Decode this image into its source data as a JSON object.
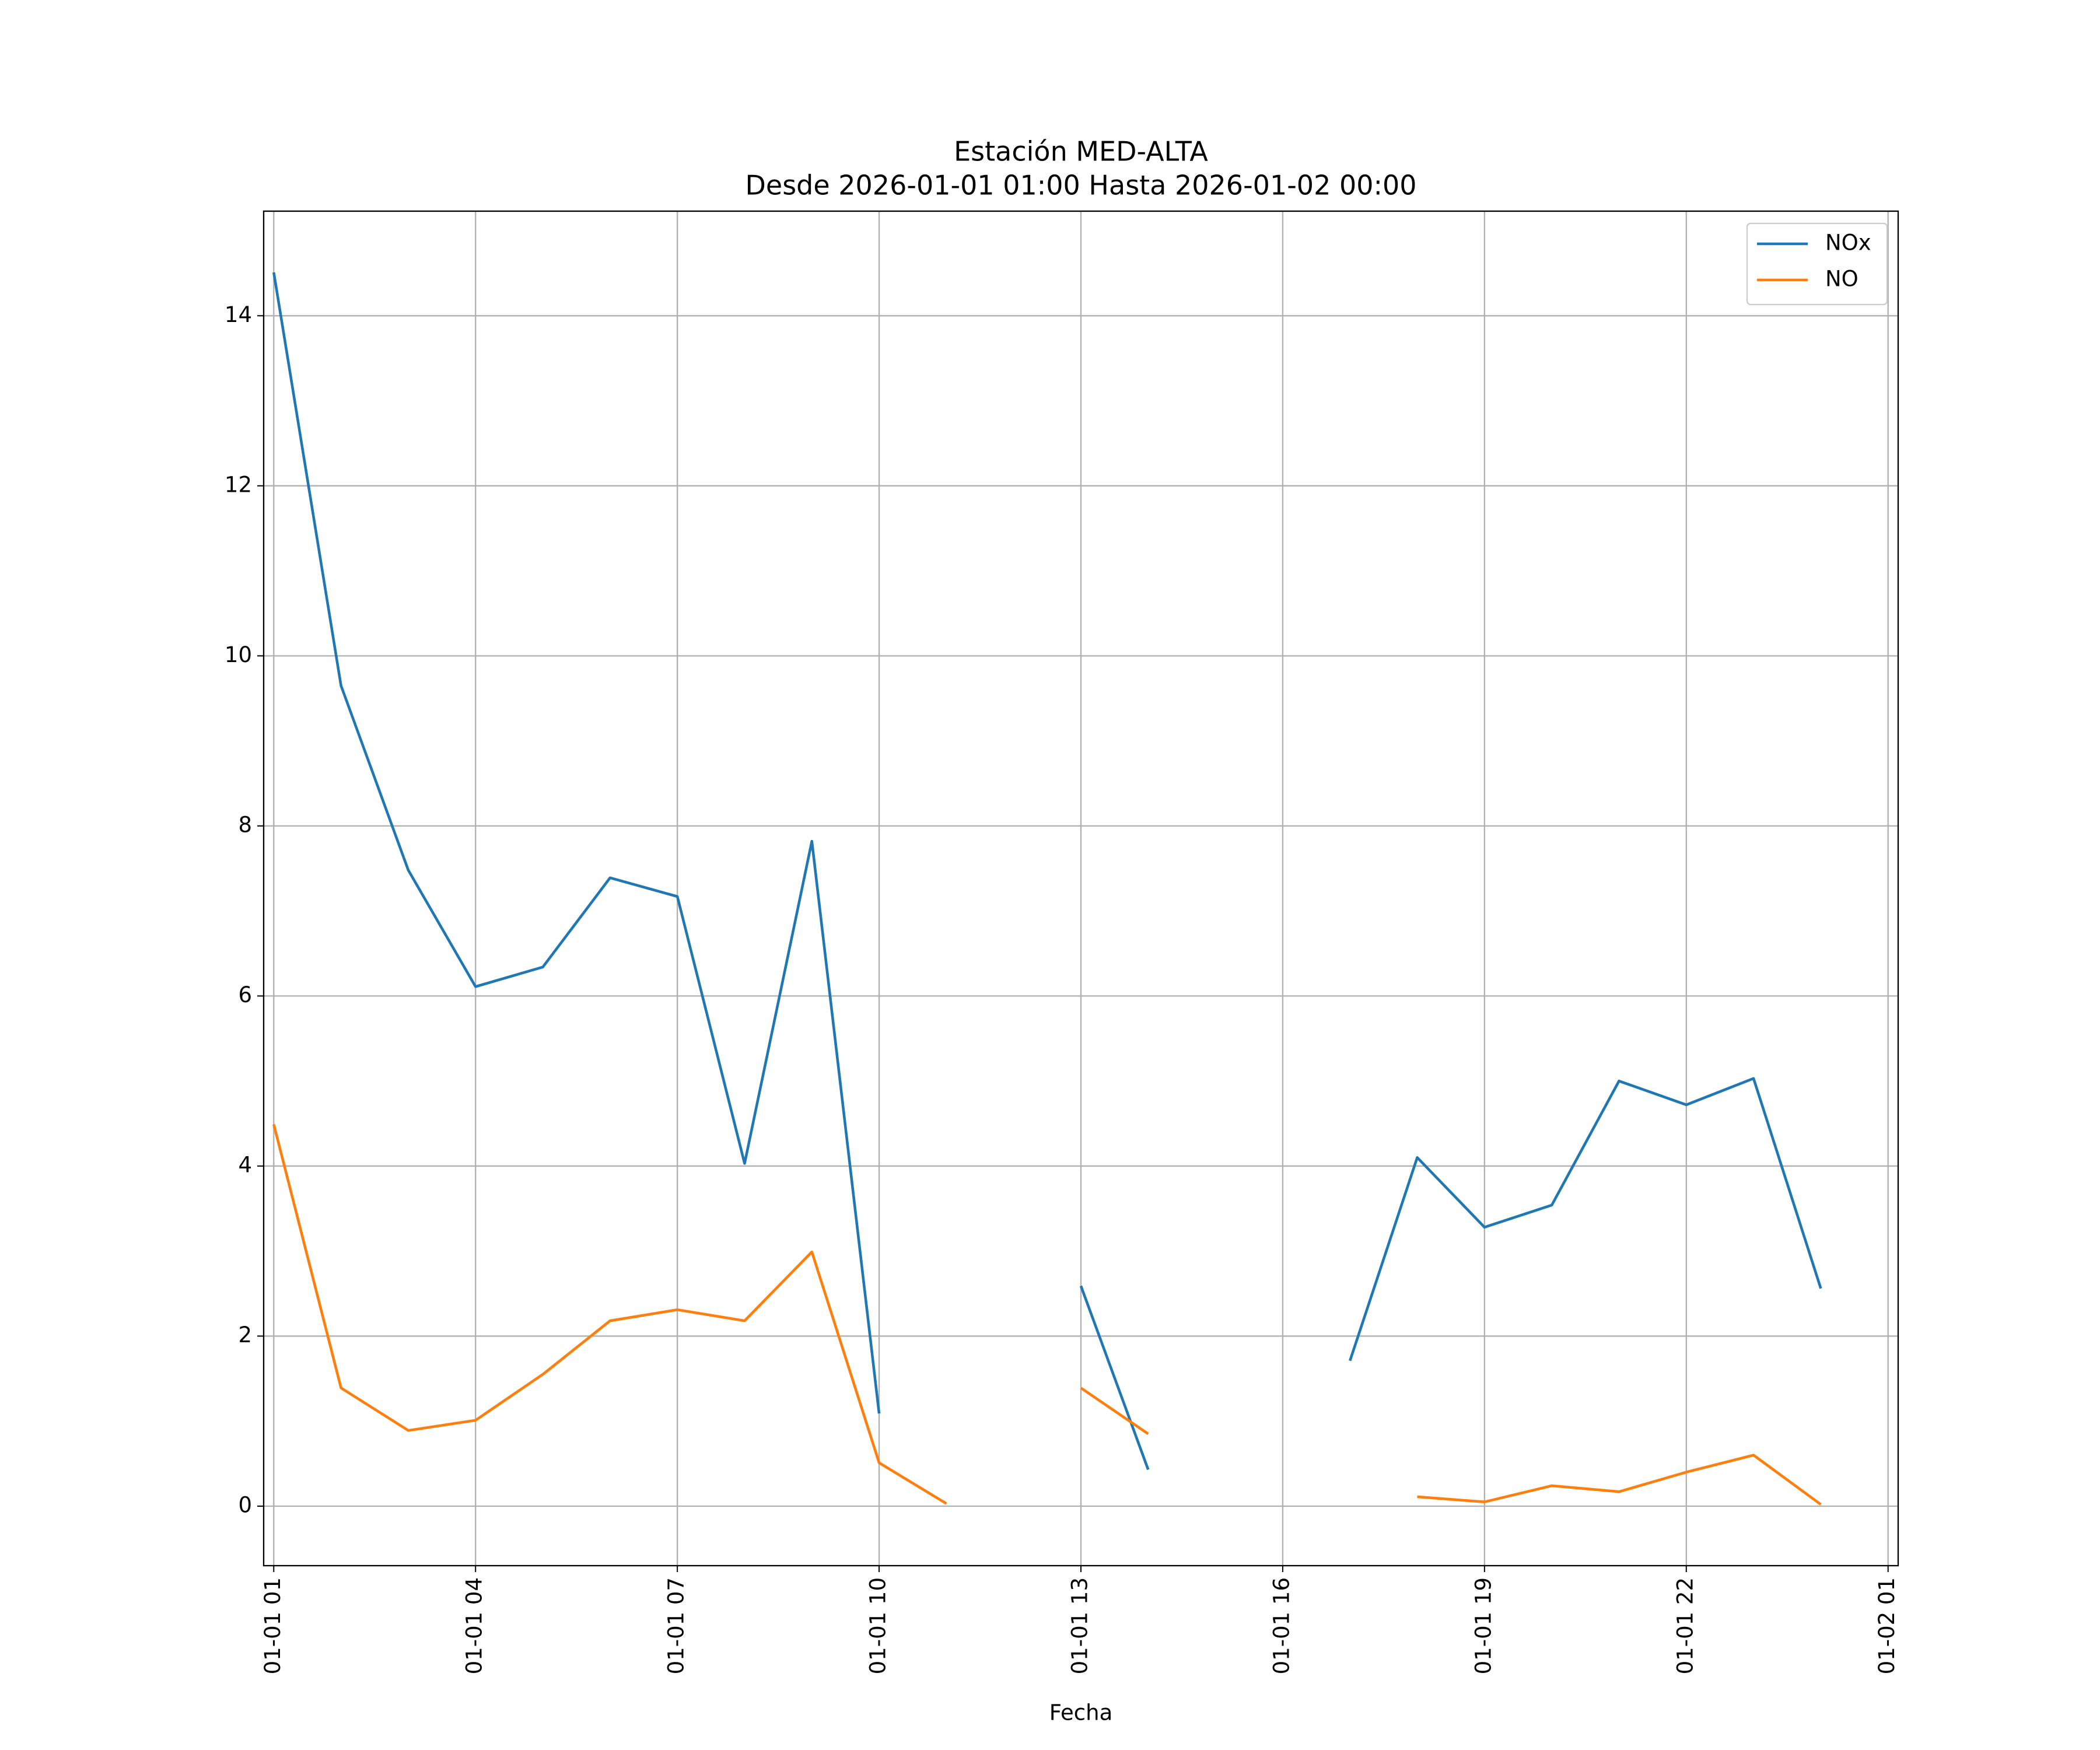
{
  "chart_data": {
    "type": "line",
    "title": "Estación MED-ALTA",
    "subtitle": "Desde 2026-01-01 01:00 Hasta 2026-01-02 00:00",
    "x_label": "Fecha",
    "x": [
      "01-01 01:00",
      "01-01 02:00",
      "01-01 03:00",
      "01-01 04:00",
      "01-01 05:00",
      "01-01 06:00",
      "01-01 07:00",
      "01-01 08:00",
      "01-01 09:00",
      "01-01 10:00",
      "01-01 11:00",
      "01-01 12:00",
      "01-01 13:00",
      "01-01 14:00",
      "01-01 15:00",
      "01-01 16:00",
      "01-01 17:00",
      "01-01 18:00",
      "01-01 19:00",
      "01-01 20:00",
      "01-01 21:00",
      "01-01 22:00",
      "01-01 23:00",
      "01-02 00:00"
    ],
    "series": [
      {
        "name": "NOx",
        "color": "#1f77b4",
        "values": [
          14.51,
          9.65,
          7.48,
          6.11,
          6.34,
          7.39,
          7.17,
          4.03,
          7.82,
          1.09,
          null,
          null,
          2.59,
          0.43,
          null,
          null,
          1.71,
          4.1,
          3.28,
          3.54,
          5.0,
          4.72,
          5.03,
          2.56
        ]
      },
      {
        "name": "NO",
        "color": "#ff7f0e",
        "values": [
          4.49,
          1.39,
          0.89,
          1.01,
          1.55,
          2.18,
          2.31,
          2.18,
          2.99,
          0.51,
          0.03,
          null,
          1.39,
          0.85,
          null,
          null,
          null,
          0.11,
          0.05,
          0.24,
          0.17,
          0.4,
          0.6,
          0.02
        ]
      }
    ],
    "xlim": [
      "01-01 00:51",
      "01-02 01:09"
    ],
    "xticks": [
      {
        "value": "01-01 01:00",
        "label": "01-01 01"
      },
      {
        "value": "01-01 04:00",
        "label": "01-01 04"
      },
      {
        "value": "01-01 07:00",
        "label": "01-01 07"
      },
      {
        "value": "01-01 10:00",
        "label": "01-01 10"
      },
      {
        "value": "01-01 13:00",
        "label": "01-01 13"
      },
      {
        "value": "01-01 16:00",
        "label": "01-01 16"
      },
      {
        "value": "01-01 19:00",
        "label": "01-01 19"
      },
      {
        "value": "01-01 22:00",
        "label": "01-01 22"
      },
      {
        "value": "01-02 01:00",
        "label": "01-02 01"
      }
    ],
    "ylim": [
      -0.7,
      15.23
    ],
    "yticks": [
      0,
      2,
      4,
      6,
      8,
      10,
      12,
      14
    ],
    "grid": true,
    "legend": "upper right"
  }
}
